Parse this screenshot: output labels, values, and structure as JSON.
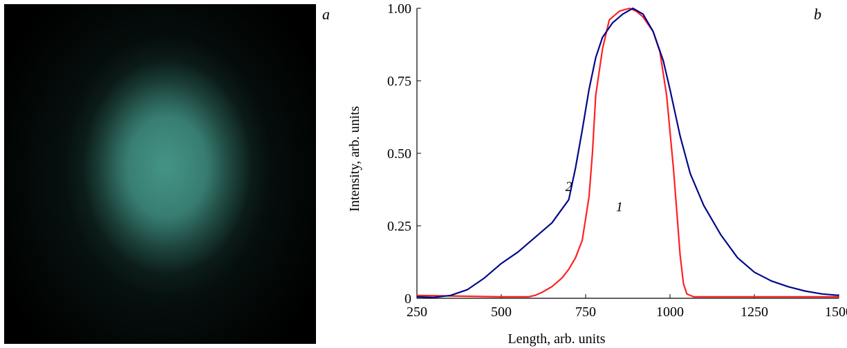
{
  "panels": {
    "a": "a",
    "b": "b"
  },
  "photo": {
    "colors": {
      "spot": "#3f8d80",
      "background": "#000000"
    }
  },
  "chart_data": {
    "type": "line",
    "xlabel": "Length, arb. units",
    "ylabel": "Intensity, arb. units",
    "xlim": [
      250,
      1500
    ],
    "ylim": [
      0,
      1.0
    ],
    "xticks": [
      250,
      500,
      750,
      1000,
      1250,
      1500
    ],
    "yticks": [
      0,
      0.25,
      0.5,
      0.75,
      1.0
    ],
    "ytick_labels": [
      "0",
      "0.25",
      "0.50",
      "0.75",
      "1.00"
    ],
    "grid": false,
    "series": [
      {
        "name": "1",
        "color": "#ff2020",
        "x": [
          250,
          500,
          580,
          600,
          620,
          650,
          680,
          700,
          720,
          740,
          760,
          770,
          780,
          800,
          820,
          850,
          880,
          900,
          920,
          950,
          970,
          990,
          1010,
          1020,
          1030,
          1040,
          1050,
          1070,
          1100,
          1200,
          1300,
          1500
        ],
        "y": [
          0.01,
          0.005,
          0.005,
          0.01,
          0.02,
          0.04,
          0.07,
          0.1,
          0.14,
          0.2,
          0.35,
          0.5,
          0.7,
          0.86,
          0.96,
          0.99,
          1.0,
          0.99,
          0.97,
          0.92,
          0.85,
          0.7,
          0.45,
          0.3,
          0.15,
          0.05,
          0.015,
          0.005,
          0.005,
          0.005,
          0.005,
          0.005
        ]
      },
      {
        "name": "2",
        "color": "#00088a",
        "x": [
          250,
          300,
          350,
          400,
          450,
          500,
          550,
          600,
          650,
          700,
          720,
          740,
          760,
          780,
          800,
          830,
          860,
          890,
          920,
          950,
          980,
          1000,
          1030,
          1060,
          1100,
          1150,
          1200,
          1250,
          1300,
          1350,
          1400,
          1450,
          1500
        ],
        "y": [
          0.005,
          0.003,
          0.01,
          0.03,
          0.07,
          0.12,
          0.16,
          0.21,
          0.26,
          0.34,
          0.45,
          0.58,
          0.72,
          0.83,
          0.9,
          0.95,
          0.98,
          1.0,
          0.98,
          0.92,
          0.82,
          0.72,
          0.56,
          0.43,
          0.32,
          0.22,
          0.14,
          0.09,
          0.06,
          0.04,
          0.025,
          0.015,
          0.01
        ]
      }
    ],
    "annotations": [
      {
        "text": "1",
        "x": 850,
        "y": 0.3
      },
      {
        "text": "2",
        "x": 700,
        "y": 0.37
      }
    ]
  }
}
